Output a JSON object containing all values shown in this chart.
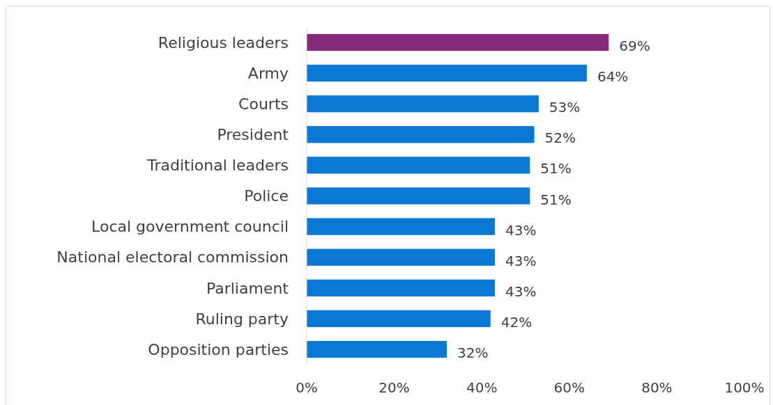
{
  "chart_data": {
    "type": "bar",
    "orientation": "horizontal",
    "categories": [
      "Religious leaders",
      "Army",
      "Courts",
      "President",
      "Traditional leaders",
      "Police",
      "Local government council",
      "National electoral commission",
      "Parliament",
      "Ruling party",
      "Opposition parties"
    ],
    "values": [
      69,
      64,
      53,
      52,
      51,
      51,
      43,
      43,
      43,
      42,
      32
    ],
    "colors": [
      "#862a7a",
      "#0a78d4",
      "#0a78d4",
      "#0a78d4",
      "#0a78d4",
      "#0a78d4",
      "#0a78d4",
      "#0a78d4",
      "#0a78d4",
      "#0a78d4",
      "#0a78d4"
    ],
    "value_labels": [
      "69%",
      "64%",
      "53%",
      "52%",
      "51%",
      "51%",
      "43%",
      "43%",
      "43%",
      "42%",
      "32%"
    ],
    "xlim": [
      0,
      100
    ],
    "xticks": [
      {
        "value": 0,
        "label": "0%"
      },
      {
        "value": 20,
        "label": "20%"
      },
      {
        "value": 40,
        "label": "40%"
      },
      {
        "value": 60,
        "label": "60%"
      },
      {
        "value": 80,
        "label": "80%"
      },
      {
        "value": 100,
        "label": "100%"
      }
    ],
    "grid": false
  }
}
